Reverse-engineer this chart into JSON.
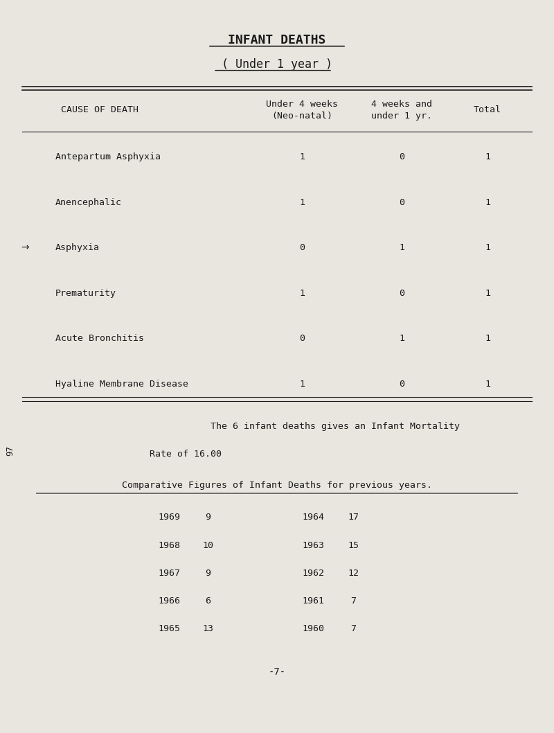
{
  "title": "INFANT DEATHS",
  "subtitle": "( Under 1 year )",
  "bg_color": "#e8e6df",
  "col_header_cause": "CAUSE OF DEATH",
  "col_header_neo": "Under 4 weeks\n(Neo-natal)",
  "col_header_4wk": "4 weeks and\nunder 1 yr.",
  "col_header_total": "Total",
  "causes": [
    "Antepartum Asphyxia",
    "Anencephalic",
    "Asphyxia",
    "Prematurity",
    "Acute Bronchitis",
    "Hyaline Membrane Disease"
  ],
  "neo_natal": [
    1,
    1,
    0,
    1,
    0,
    1
  ],
  "four_weeks": [
    0,
    0,
    1,
    0,
    1,
    0
  ],
  "totals": [
    1,
    1,
    1,
    1,
    1,
    1
  ],
  "summary_line1": "The 6 infant deaths gives an Infant Mortality",
  "summary_line2": "Rate of 16.00",
  "comp_title": "Comparative Figures of Infant Deaths for previous years.",
  "comp_years_left": [
    1969,
    1968,
    1967,
    1966,
    1965
  ],
  "comp_vals_left": [
    9,
    10,
    9,
    6,
    13
  ],
  "comp_years_right": [
    1964,
    1963,
    1962,
    1961,
    1960
  ],
  "comp_vals_right": [
    17,
    15,
    12,
    7,
    7
  ],
  "page_number": "-7-",
  "side_number": "97"
}
